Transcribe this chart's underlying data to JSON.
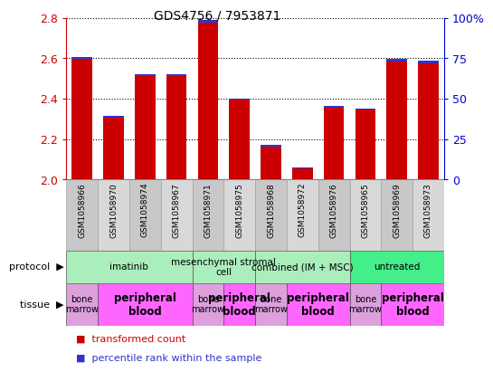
{
  "title": "GDS4756 / 7953871",
  "samples": [
    "GSM1058966",
    "GSM1058970",
    "GSM1058974",
    "GSM1058967",
    "GSM1058971",
    "GSM1058975",
    "GSM1058968",
    "GSM1058972",
    "GSM1058976",
    "GSM1058965",
    "GSM1058969",
    "GSM1058973"
  ],
  "red_values": [
    2.595,
    2.305,
    2.51,
    2.51,
    2.775,
    2.395,
    2.165,
    2.055,
    2.355,
    2.345,
    2.585,
    2.575
  ],
  "blue_heights": [
    0.012,
    0.008,
    0.012,
    0.012,
    0.015,
    0.006,
    0.006,
    0.003,
    0.008,
    0.008,
    0.012,
    0.012
  ],
  "y_min": 2.0,
  "y_max": 2.8,
  "y_ticks": [
    2.0,
    2.2,
    2.4,
    2.6,
    2.8
  ],
  "y2_ticks": [
    0,
    25,
    50,
    75,
    100
  ],
  "y2_labels": [
    "0",
    "25",
    "50",
    "75",
    "100%"
  ],
  "protocol_groups": [
    {
      "label": "imatinib",
      "start": 0,
      "end": 3,
      "color": "#AAEEBB"
    },
    {
      "label": "mesenchymal stromal\ncell",
      "start": 4,
      "end": 5,
      "color": "#AAEEBB"
    },
    {
      "label": "combined (IM + MSC)",
      "start": 6,
      "end": 8,
      "color": "#AAEEBB"
    },
    {
      "label": "untreated",
      "start": 9,
      "end": 11,
      "color": "#44EE88"
    }
  ],
  "tissue_groups": [
    {
      "label": "bone\nmarrow",
      "start": 0,
      "end": 0,
      "color": "#DDA0DD",
      "bold": false
    },
    {
      "label": "peripheral\nblood",
      "start": 1,
      "end": 3,
      "color": "#FF66FF",
      "bold": true
    },
    {
      "label": "bone\nmarrow",
      "start": 4,
      "end": 4,
      "color": "#DDA0DD",
      "bold": false
    },
    {
      "label": "peripheral\nblood",
      "start": 5,
      "end": 5,
      "color": "#FF66FF",
      "bold": true
    },
    {
      "label": "bone\nmarrow",
      "start": 6,
      "end": 6,
      "color": "#DDA0DD",
      "bold": false
    },
    {
      "label": "peripheral\nblood",
      "start": 7,
      "end": 8,
      "color": "#FF66FF",
      "bold": true
    },
    {
      "label": "bone\nmarrow",
      "start": 9,
      "end": 9,
      "color": "#DDA0DD",
      "bold": false
    },
    {
      "label": "peripheral\nblood",
      "start": 10,
      "end": 11,
      "color": "#FF66FF",
      "bold": true
    }
  ],
  "red_color": "#CC0000",
  "blue_color": "#3333CC",
  "left_tick_color": "#CC0000",
  "right_tick_color": "#0000CC",
  "bar_width": 0.65,
  "sample_box_color1": "#C8C8C8",
  "sample_box_color2": "#D8D8D8"
}
